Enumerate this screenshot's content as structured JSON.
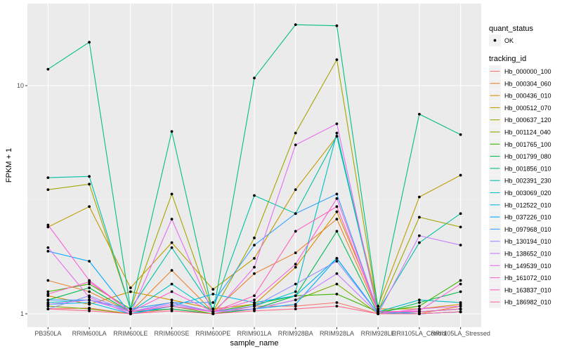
{
  "chart_data": {
    "type": "line",
    "xlabel": "sample_name",
    "ylabel": "FPKM + 1",
    "y_scale": "log10",
    "ylim": [
      0.9,
      20
    ],
    "y_ticks": [
      1,
      10
    ],
    "y_tick_labels": [
      "1",
      "10"
    ],
    "grid": true,
    "legend_position": "right",
    "categories": [
      "PB350LA",
      "RRIM600LA",
      "RRIM600LE",
      "RRIM600SE",
      "RRIM600PE",
      "RRIM901LA",
      "RRIM928BA",
      "RRIM928LA",
      "RRIM928LE",
      "RRII105LA_Control",
      "RRII105LA_Stressed"
    ],
    "point_legend": {
      "title": "quant_status",
      "label": "OK"
    },
    "series_legend_title": "tracking_id",
    "series": [
      {
        "name": "Hb_000000_100",
        "color": "#F8766D",
        "values": [
          1.05,
          1.06,
          1.0,
          1.05,
          1.0,
          1.08,
          1.08,
          1.12,
          1.0,
          1.02,
          1.05
        ]
      },
      {
        "name": "Hb_000304_060",
        "color": "#EA8331",
        "values": [
          1.4,
          1.25,
          1.02,
          1.55,
          1.02,
          1.5,
          1.85,
          2.6,
          1.02,
          1.0,
          1.08
        ]
      },
      {
        "name": "Hb_000436_010",
        "color": "#D89000",
        "values": [
          1.2,
          1.1,
          1.25,
          1.15,
          1.05,
          1.1,
          1.6,
          2.8,
          1.05,
          1.05,
          1.1
        ]
      },
      {
        "name": "Hb_000512_070",
        "color": "#C09B00",
        "values": [
          2.4,
          2.95,
          1.3,
          2.05,
          1.28,
          1.75,
          3.5,
          6.0,
          1.08,
          3.25,
          4.05
        ]
      },
      {
        "name": "Hb_000637_120",
        "color": "#A3A500",
        "values": [
          3.5,
          3.7,
          1.05,
          3.35,
          1.02,
          2.15,
          6.2,
          13.0,
          1.03,
          2.65,
          2.4
        ]
      },
      {
        "name": "Hb_001124_040",
        "color": "#7CAE00",
        "values": [
          1.08,
          1.05,
          1.0,
          1.08,
          1.0,
          1.05,
          1.15,
          1.35,
          1.0,
          1.02,
          1.05
        ]
      },
      {
        "name": "Hb_001765_100",
        "color": "#39B600",
        "values": [
          1.25,
          1.35,
          1.05,
          1.12,
          1.02,
          1.1,
          1.2,
          1.22,
          1.02,
          1.08,
          1.4
        ]
      },
      {
        "name": "Hb_001799_080",
        "color": "#00BB4E",
        "values": [
          1.15,
          1.3,
          1.02,
          1.05,
          1.0,
          1.05,
          1.2,
          2.3,
          1.0,
          1.12,
          1.25
        ]
      },
      {
        "name": "Hb_001856_010",
        "color": "#00BF7D",
        "values": [
          11.8,
          15.5,
          1.05,
          6.3,
          1.0,
          10.8,
          18.5,
          18.3,
          1.05,
          7.5,
          6.1
        ]
      },
      {
        "name": "Hb_002391_230",
        "color": "#00C1A3",
        "values": [
          3.95,
          4.0,
          1.05,
          1.95,
          1.05,
          3.3,
          2.75,
          6.0,
          1.03,
          2.05,
          2.75
        ]
      },
      {
        "name": "Hb_003069_020",
        "color": "#00BFC4",
        "values": [
          1.12,
          1.15,
          1.02,
          1.35,
          1.02,
          1.08,
          1.25,
          6.2,
          1.02,
          1.15,
          1.12
        ]
      },
      {
        "name": "Hb_012522_010",
        "color": "#00B8E7",
        "values": [
          1.1,
          1.12,
          1.0,
          1.08,
          1.22,
          1.12,
          1.2,
          1.75,
          1.0,
          1.02,
          1.05
        ]
      },
      {
        "name": "Hb_037226_010",
        "color": "#00A9FF",
        "values": [
          1.88,
          1.7,
          1.0,
          1.08,
          1.02,
          1.05,
          1.1,
          1.75,
          1.0,
          1.0,
          1.02
        ]
      },
      {
        "name": "Hb_097968_010",
        "color": "#35A2FF",
        "values": [
          1.15,
          1.15,
          1.05,
          1.12,
          1.12,
          2.0,
          2.75,
          3.35,
          1.02,
          1.0,
          1.02
        ]
      },
      {
        "name": "Hb_130194_010",
        "color": "#9590FF",
        "values": [
          1.05,
          1.2,
          1.02,
          1.12,
          1.02,
          1.08,
          1.35,
          1.7,
          1.0,
          1.0,
          1.02
        ]
      },
      {
        "name": "Hb_138652_010",
        "color": "#C77CFF",
        "values": [
          1.1,
          1.15,
          1.02,
          1.1,
          1.02,
          1.05,
          1.15,
          1.5,
          1.0,
          2.2,
          2.0
        ]
      },
      {
        "name": "Hb_149539_010",
        "color": "#E76BF3",
        "values": [
          1.95,
          1.18,
          1.0,
          2.6,
          1.0,
          1.6,
          5.5,
          6.8,
          1.0,
          1.05,
          1.08
        ]
      },
      {
        "name": "Hb_161072_010",
        "color": "#FA62DB",
        "values": [
          2.45,
          1.4,
          1.02,
          1.25,
          1.02,
          1.15,
          1.65,
          3.2,
          1.02,
          1.03,
          1.35
        ]
      },
      {
        "name": "Hb_163837_010",
        "color": "#FF62BC",
        "values": [
          1.22,
          1.38,
          1.02,
          1.08,
          1.02,
          1.2,
          2.3,
          2.95,
          1.02,
          1.02,
          1.05
        ]
      },
      {
        "name": "Hb_186982_010",
        "color": "#FF6C91",
        "values": [
          1.05,
          1.03,
          1.0,
          1.03,
          1.0,
          1.03,
          1.05,
          1.08,
          1.0,
          1.0,
          1.02
        ]
      }
    ]
  }
}
